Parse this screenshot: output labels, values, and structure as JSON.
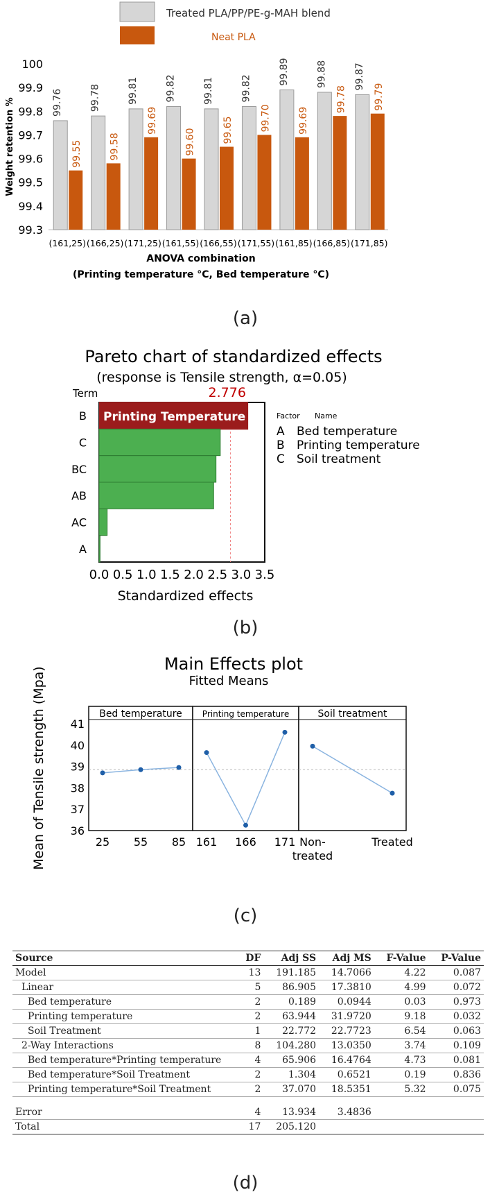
{
  "chart_data": [
    {
      "type": "bar",
      "panel_label": "(a)",
      "legend": [
        "Treated PLA/PP/PE-g-MAH blend",
        "Neat PLA"
      ],
      "categories": [
        "(161,25)",
        "(166,25)",
        "(171,25)",
        "(161,55)",
        "(166,55)",
        "(171,55)",
        "(161,85)",
        "(166,85)",
        "(171,85)"
      ],
      "series": [
        {
          "name": "Treated PLA/PP/PE-g-MAH blend",
          "color": "#d6d6d6",
          "values": [
            99.76,
            99.78,
            99.81,
            99.82,
            99.81,
            99.82,
            99.89,
            99.88,
            99.87
          ],
          "labels": [
            "99.76",
            "99.78",
            "99.81",
            "99.82",
            "99.81",
            "99.82",
            "99.89",
            "99.88",
            "99.87"
          ]
        },
        {
          "name": "Neat PLA",
          "color": "#c8580e",
          "values": [
            99.55,
            99.58,
            99.69,
            99.6,
            99.65,
            99.7,
            99.69,
            99.78,
            99.79
          ],
          "labels": [
            "99.55",
            "99.58",
            "99.69",
            "99.60",
            "99.65",
            "99.70",
            "99.69",
            "99.78",
            "99.79"
          ]
        }
      ],
      "ylabel": "Weight retention %",
      "xlabel": "ANOVA combination",
      "xlabel2": "(Printing temperature °C, Bed temperature °C)",
      "ylim": [
        99.3,
        100
      ],
      "yticks": [
        "100",
        "99.9",
        "99.8",
        "99.7",
        "99.6",
        "99.5",
        "99.4",
        "99.3"
      ]
    },
    {
      "type": "bar",
      "orientation": "horizontal",
      "panel_label": "(b)",
      "title": "Pareto chart of standardized effects",
      "subtitle": "(response is Tensile strength, α=0.05)",
      "term_header": "Term",
      "reference_value": 2.776,
      "reference_label": "2.776",
      "categories": [
        "B",
        "C",
        "BC",
        "AB",
        "AC",
        "A"
      ],
      "values": [
        3.15,
        2.56,
        2.47,
        2.42,
        0.17,
        0.02
      ],
      "bar_colors": [
        "#9b1c1c",
        "#4caf50",
        "#4caf50",
        "#4caf50",
        "#4caf50",
        "#4caf50"
      ],
      "highlight_label": "Printing Temperature",
      "xlabel": "Standardized effects",
      "xlim": [
        0,
        3.5
      ],
      "xticks": [
        "0.0",
        "0.5",
        "1.0",
        "1.5",
        "2.0",
        "2.5",
        "3.0",
        "3.5"
      ],
      "factor_header": "Factor",
      "name_header": "Name",
      "factors": [
        {
          "code": "A",
          "name": "Bed temperature"
        },
        {
          "code": "B",
          "name": "Printing temperature"
        },
        {
          "code": "C",
          "name": "Soil treatment"
        }
      ]
    },
    {
      "type": "line",
      "panel_label": "(c)",
      "title": "Main Effects plot",
      "subtitle": "Fitted Means",
      "ylabel": "Mean of Tensile strength (Mpa)",
      "ylim": [
        36,
        41
      ],
      "yticks": [
        "41",
        "40",
        "39",
        "38",
        "37",
        "36"
      ],
      "reference_mean": 38.85,
      "panels": [
        {
          "name": "Bed temperature",
          "x": [
            "25",
            "55",
            "85"
          ],
          "y": [
            38.7,
            38.85,
            38.95
          ]
        },
        {
          "name": "Printing temperature",
          "x": [
            "161",
            "166",
            "171"
          ],
          "y": [
            39.65,
            36.25,
            40.6
          ]
        },
        {
          "name": "Soil treatment",
          "x": [
            "Non-\ntreated",
            "Treated"
          ],
          "y": [
            39.95,
            37.75
          ]
        }
      ]
    }
  ],
  "table": {
    "panel_label": "(d)",
    "headers": [
      "Source",
      "DF",
      "Adj SS",
      "Adj MS",
      "F-Value",
      "P-Value"
    ],
    "rows": [
      [
        "Model",
        "13",
        "191.185",
        "14.7066",
        "4.22",
        "0.087"
      ],
      [
        "Linear",
        "5",
        "86.905",
        "17.3810",
        "4.99",
        "0.072"
      ],
      [
        "Bed temperature",
        "2",
        "0.189",
        "0.0944",
        "0.03",
        "0.973"
      ],
      [
        "Printing temperature",
        "2",
        "63.944",
        "31.9720",
        "9.18",
        "0.032"
      ],
      [
        "Soil Treatment",
        "1",
        "22.772",
        "22.7723",
        "6.54",
        "0.063"
      ],
      [
        "2-Way Interactions",
        "8",
        "104.280",
        "13.0350",
        "3.74",
        "0.109"
      ],
      [
        "Bed temperature*Printing temperature",
        "4",
        "65.906",
        "16.4764",
        "4.73",
        "0.081"
      ],
      [
        "Bed temperature*Soil Treatment",
        "2",
        "1.304",
        "0.6521",
        "0.19",
        "0.836"
      ],
      [
        "Printing temperature*Soil Treatment",
        "2",
        "37.070",
        "18.5351",
        "5.32",
        "0.075"
      ],
      [
        "Error",
        "4",
        "13.934",
        "3.4836",
        "",
        ""
      ],
      [
        "Total",
        "17",
        "205.120",
        "",
        "",
        ""
      ]
    ]
  }
}
